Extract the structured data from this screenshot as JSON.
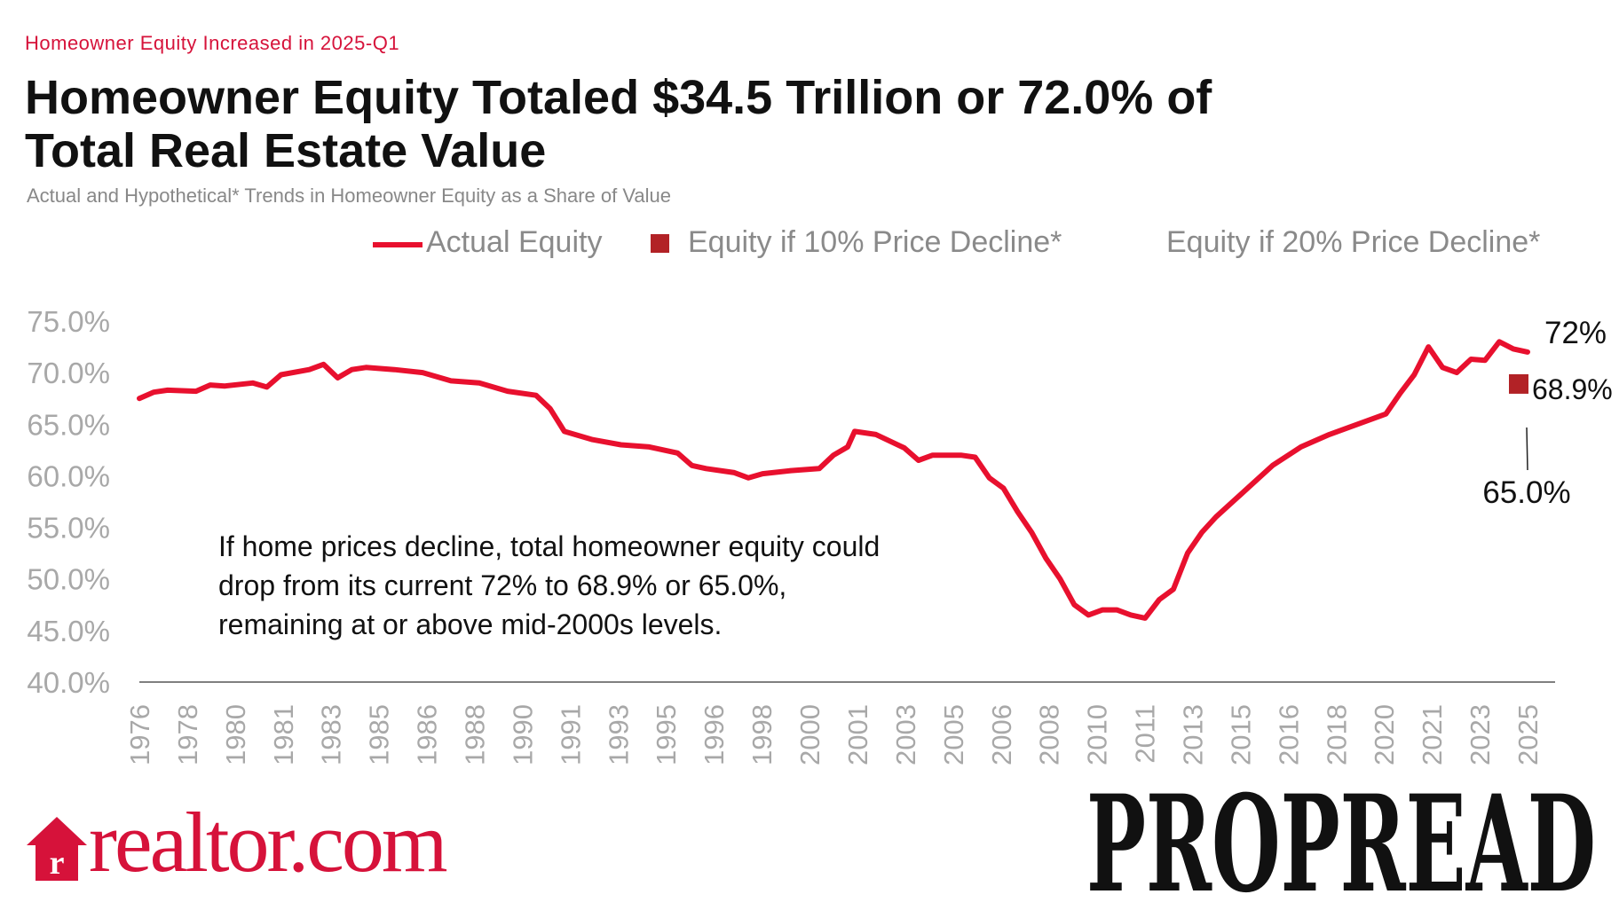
{
  "header": {
    "kicker": "Homeowner Equity Increased in 2025-Q1",
    "title": "Homeowner Equity Totaled $34.5 Trillion or 72.0% of Total Real Estate Value",
    "subtitle": "Actual and Hypothetical* Trends in Homeowner Equity as a Share of Value"
  },
  "annotation": "If home prices decline, total homeowner equity could drop from its current 72% to 68.9% or 65.0%, remaining at or above mid-2000s levels.",
  "logo": {
    "text": "realtor.com",
    "watermark": "PROPREAD"
  },
  "colors": {
    "actual": "#e8102e",
    "decline10": "#b22226",
    "axis_text": "#a8a8a8",
    "brand": "#d6123a"
  },
  "chart_data": {
    "type": "line",
    "title": "Homeowner Equity Totaled $34.5 Trillion or 72.0% of Total Real Estate Value",
    "ylim": [
      40,
      75
    ],
    "y_ticks": [
      "75.0%",
      "70.0%",
      "65.0%",
      "60.0%",
      "55.0%",
      "50.0%",
      "45.0%",
      "40.0%"
    ],
    "x_ticks": [
      "1976",
      "1978",
      "1980",
      "1981",
      "1983",
      "1985",
      "1986",
      "1988",
      "1990",
      "1991",
      "1993",
      "1995",
      "1996",
      "1998",
      "2000",
      "2001",
      "2003",
      "2005",
      "2006",
      "2008",
      "2010",
      "2011",
      "2013",
      "2015",
      "2016",
      "2018",
      "2020",
      "2021",
      "2023",
      "2025"
    ],
    "grid": false,
    "legend": {
      "placement": "top",
      "entries": [
        "Actual Equity",
        "Equity if 10% Price Decline*",
        "Equity if 20% Price Decline*"
      ]
    },
    "series": [
      {
        "name": "Actual Equity",
        "x": [
          1976,
          1976.5,
          1977,
          1978,
          1978.5,
          1979,
          1980,
          1980.5,
          1981,
          1982,
          1982.5,
          1983,
          1983.5,
          1984,
          1985,
          1986,
          1987,
          1988,
          1989,
          1990,
          1990.5,
          1991,
          1992,
          1993,
          1994,
          1995,
          1995.5,
          1996,
          1997,
          1997.5,
          1998,
          1999,
          2000,
          2000.5,
          2001,
          2001.25,
          2002,
          2003,
          2003.5,
          2004,
          2005,
          2005.5,
          2006,
          2006.5,
          2007,
          2007.5,
          2008,
          2008.5,
          2009,
          2009.5,
          2010,
          2010.5,
          2011,
          2011.5,
          2012,
          2012.5,
          2013,
          2013.5,
          2014,
          2015,
          2016,
          2017,
          2018,
          2019,
          2020,
          2020.5,
          2021,
          2021.5,
          2022,
          2022.5,
          2023,
          2023.5,
          2024,
          2024.5,
          2025
        ],
        "y": [
          67.5,
          68.1,
          68.3,
          68.2,
          68.8,
          68.7,
          69.0,
          68.6,
          69.8,
          70.3,
          70.8,
          69.5,
          70.3,
          70.5,
          70.3,
          70.0,
          69.2,
          69.0,
          68.2,
          67.8,
          66.5,
          64.3,
          63.5,
          63.0,
          62.8,
          62.2,
          61.0,
          60.7,
          60.3,
          59.8,
          60.2,
          60.5,
          60.7,
          62.0,
          62.8,
          64.3,
          64.0,
          62.7,
          61.5,
          62.0,
          62.0,
          61.8,
          59.8,
          58.8,
          56.5,
          54.5,
          52.0,
          50.0,
          47.5,
          46.5,
          47.0,
          47.0,
          46.5,
          46.2,
          48.0,
          49.0,
          52.5,
          54.5,
          56.0,
          58.5,
          61.0,
          62.8,
          64.0,
          65.0,
          66.0,
          68.0,
          69.8,
          72.5,
          70.5,
          70.0,
          71.3,
          71.2,
          73.0,
          72.3,
          72.0
        ]
      },
      {
        "name": "Equity if 10% Price Decline*",
        "x": [
          2025
        ],
        "y": [
          68.9
        ]
      },
      {
        "name": "Equity if 20% Price Decline*",
        "x": [
          2025
        ],
        "y": [
          65.0
        ]
      }
    ],
    "data_labels": {
      "actual": "72%",
      "decline10": "68.9%",
      "decline20": "65.0%"
    }
  }
}
